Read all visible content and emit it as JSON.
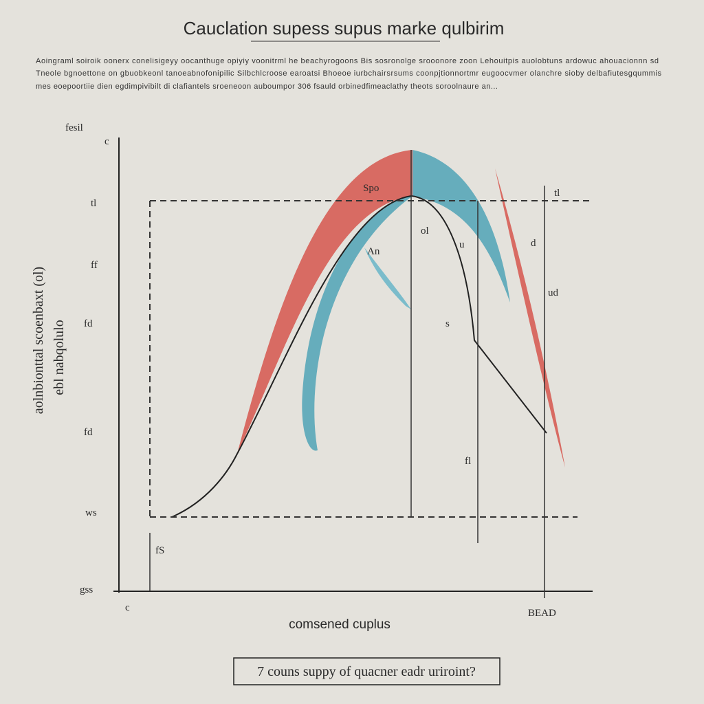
{
  "header": {
    "title": "Cauclation supess  supus  marke qulbirim",
    "description": [
      "Aoingraml soiroik oonerx conelisigeyy oocanthuge opiyiy voonitrml he beachyrogoons  Bis sosronolge srooonore zoon Lehouitpis auolobtuns ardowuc ahouacionnn sd",
      "Tneole bgnoettone on gbuobkeonl tanoeabnofonipilic Silbchlcroose earoatsi Bhoeoe iurbchairsrsums coonpjtionnortmr eugoocvmer olanchre sioby delbafiutesgqummis",
      "mes eoepoortiie dien egdimpivibilt di clafiantels sroeneoon auboumpor 306 fsauld orbinedfimeaclathy theots soroolnaure an..."
    ]
  },
  "axes": {
    "y_title": "fesil",
    "y_label": [
      "aolnbionttal scoenbaxt (ol)",
      "ebl nabqolulo"
    ],
    "x_label": "comsened cuplus",
    "y_top": "c",
    "origin": "c",
    "x_end": "BEAD"
  },
  "annotations": [
    "Spo",
    "An",
    "ol",
    "u",
    "ud",
    "tl",
    "d",
    "tl",
    "ff",
    "fd",
    "fd",
    "ws",
    "gss",
    "fl",
    "s",
    "fS"
  ],
  "caption": "7 couns suppy of quacner eadr uriroint?"
}
